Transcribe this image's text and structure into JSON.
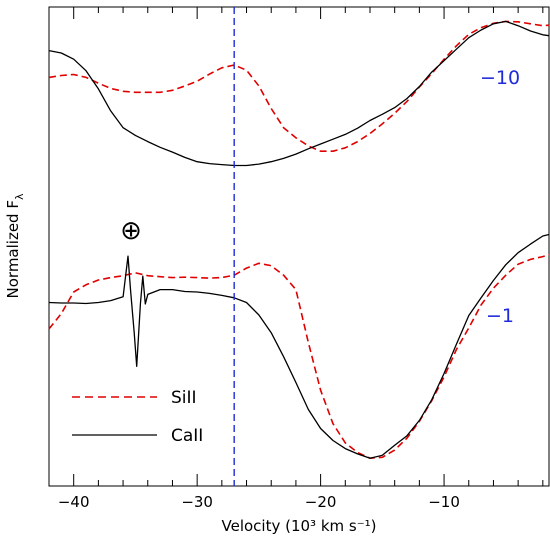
{
  "chart_data": {
    "type": "line",
    "title": "",
    "xlabel": "Velocity (10³ km s⁻¹)",
    "ylabel": "Normalized F",
    "ylabel_subscript": "λ",
    "xlim": [
      -42,
      -1.5
    ],
    "ylim": [
      0,
      1
    ],
    "xticks": [
      -40,
      -30,
      -20,
      -10
    ],
    "xtick_labels": [
      "−40",
      "−30",
      "−20",
      "−10"
    ],
    "y_tick_labels_shown": false,
    "grid": false,
    "legend": {
      "placement": "bottom-left",
      "entries": [
        {
          "label": "SiII",
          "color": "#e00000",
          "style": "dashed"
        },
        {
          "label": "CaII",
          "color": "#000000",
          "style": "solid"
        }
      ]
    },
    "reference_line": {
      "x": -27,
      "color": "#1f2ad8",
      "style": "dashed"
    },
    "telluric_symbol": {
      "label": "⊕",
      "x": -35.5,
      "y": 0.565
    },
    "panels": [
      {
        "phase_label": "−10",
        "phase_label_color": "#1f2ad8",
        "series": [
          {
            "name": "SiII",
            "color": "#e00000",
            "style": "dashed",
            "x": [
              -42,
              -41,
              -40,
              -39,
              -38,
              -37,
              -36,
              -35,
              -34,
              -33,
              -32,
              -31,
              -30,
              -29,
              -28,
              -27,
              -26,
              -25,
              -24,
              -23,
              -22,
              -21,
              -20,
              -19,
              -18,
              -17,
              -16,
              -15,
              -14,
              -13,
              -12,
              -11,
              -10,
              -9,
              -8,
              -7,
              -6,
              -5,
              -4,
              -3,
              -2,
              -1.5
            ],
            "y": [
              0.853,
              0.857,
              0.859,
              0.853,
              0.841,
              0.83,
              0.824,
              0.822,
              0.822,
              0.822,
              0.826,
              0.835,
              0.845,
              0.86,
              0.873,
              0.879,
              0.868,
              0.835,
              0.788,
              0.748,
              0.727,
              0.71,
              0.699,
              0.699,
              0.706,
              0.719,
              0.736,
              0.756,
              0.778,
              0.803,
              0.833,
              0.861,
              0.891,
              0.919,
              0.943,
              0.957,
              0.966,
              0.97,
              0.969,
              0.965,
              0.961,
              0.962
            ]
          },
          {
            "name": "CaII",
            "color": "#000000",
            "style": "solid",
            "x": [
              -42,
              -41,
              -40,
              -39,
              -38,
              -37,
              -36,
              -35,
              -34,
              -33,
              -32,
              -31,
              -30,
              -29,
              -28,
              -27,
              -26,
              -25,
              -24,
              -23,
              -22,
              -21,
              -20,
              -19,
              -18,
              -17,
              -16,
              -15,
              -14,
              -13,
              -12,
              -11,
              -10,
              -9,
              -8,
              -7,
              -6,
              -5,
              -4,
              -3,
              -2,
              -1.5
            ],
            "y": [
              0.909,
              0.904,
              0.891,
              0.867,
              0.829,
              0.783,
              0.748,
              0.732,
              0.719,
              0.707,
              0.697,
              0.686,
              0.677,
              0.673,
              0.671,
              0.669,
              0.669,
              0.672,
              0.677,
              0.684,
              0.693,
              0.704,
              0.714,
              0.724,
              0.734,
              0.747,
              0.763,
              0.776,
              0.79,
              0.809,
              0.834,
              0.864,
              0.888,
              0.912,
              0.936,
              0.952,
              0.965,
              0.97,
              0.961,
              0.95,
              0.942,
              0.94
            ]
          }
        ]
      },
      {
        "phase_label": "−1",
        "phase_label_color": "#1f2ad8",
        "series": [
          {
            "name": "SiII",
            "color": "#e00000",
            "style": "dashed",
            "x": [
              -42,
              -41,
              -40,
              -39,
              -38,
              -37,
              -36,
              -35,
              -34,
              -33,
              -32,
              -31,
              -30,
              -29,
              -28,
              -27,
              -26,
              -25,
              -24,
              -23,
              -22,
              -21,
              -20,
              -19,
              -18,
              -17,
              -16,
              -15,
              -14,
              -13,
              -12,
              -11,
              -10,
              -9,
              -8,
              -7,
              -6,
              -5,
              -4,
              -3,
              -2,
              -1.5
            ],
            "y": [
              0.328,
              0.36,
              0.405,
              0.42,
              0.43,
              0.435,
              0.439,
              0.445,
              0.439,
              0.437,
              0.435,
              0.436,
              0.435,
              0.434,
              0.435,
              0.44,
              0.455,
              0.465,
              0.46,
              0.44,
              0.41,
              0.3,
              0.2,
              0.13,
              0.09,
              0.07,
              0.058,
              0.06,
              0.075,
              0.1,
              0.135,
              0.178,
              0.228,
              0.285,
              0.33,
              0.378,
              0.413,
              0.44,
              0.463,
              0.473,
              0.479,
              0.483
            ]
          },
          {
            "name": "CaII",
            "color": "#000000",
            "style": "solid",
            "x": [
              -42,
              -41,
              -40,
              -39,
              -38,
              -37,
              -36,
              -35.6,
              -35.4,
              -35.1,
              -34.9,
              -34.6,
              -34.4,
              -34.2,
              -34,
              -33,
              -32,
              -31,
              -30,
              -29,
              -28,
              -27,
              -26,
              -25,
              -24,
              -23,
              -22,
              -21,
              -20,
              -19,
              -18,
              -17,
              -16,
              -15,
              -14,
              -13,
              -12,
              -11,
              -10,
              -9,
              -8,
              -7,
              -6,
              -5,
              -4,
              -3,
              -2,
              -1.5
            ],
            "y": [
              0.383,
              0.382,
              0.382,
              0.381,
              0.383,
              0.387,
              0.395,
              0.48,
              0.41,
              0.32,
              0.25,
              0.38,
              0.438,
              0.38,
              0.4,
              0.41,
              0.41,
              0.406,
              0.405,
              0.402,
              0.398,
              0.393,
              0.383,
              0.357,
              0.32,
              0.27,
              0.216,
              0.16,
              0.12,
              0.095,
              0.078,
              0.067,
              0.058,
              0.064,
              0.085,
              0.105,
              0.137,
              0.18,
              0.235,
              0.296,
              0.356,
              0.393,
              0.429,
              0.462,
              0.487,
              0.505,
              0.522,
              0.525
            ]
          }
        ]
      }
    ]
  }
}
